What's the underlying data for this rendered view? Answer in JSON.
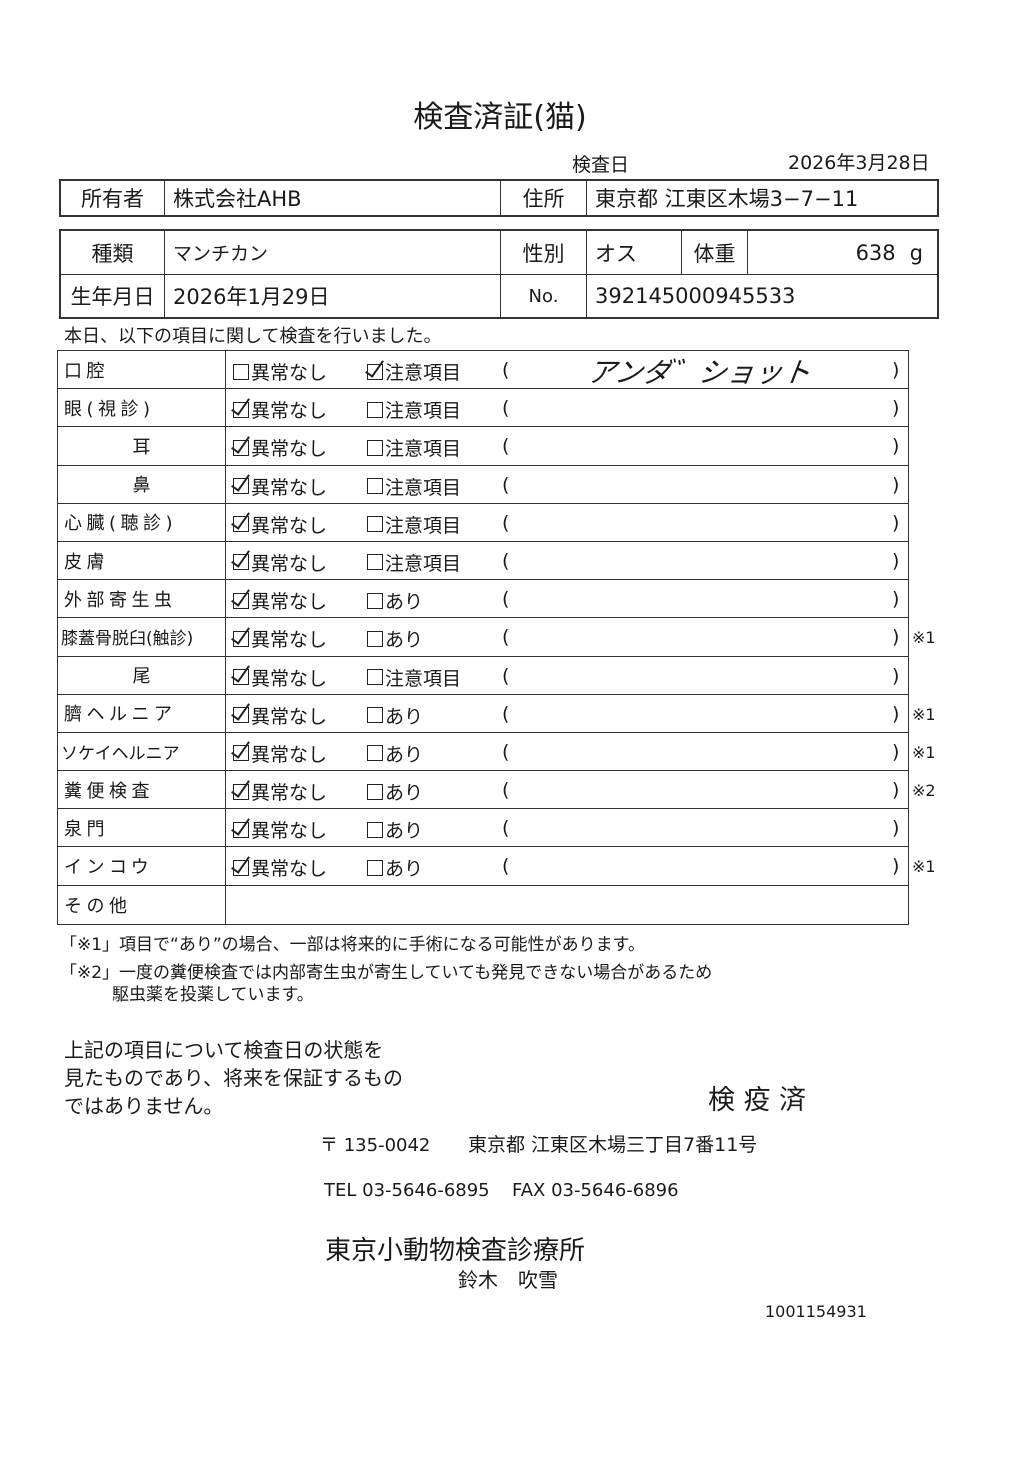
{
  "title": "検査済証(猫)",
  "inspection_date_label": "検査日",
  "inspection_date": "2026年3月28日",
  "owner": {
    "label": "所有者",
    "value": "株式会社AHB",
    "address_label": "住所",
    "address": "東京都 江東区木場3−7−11"
  },
  "pet": {
    "breed_label": "種類",
    "breed": "マンチカン",
    "sex_label": "性別",
    "sex": "オス",
    "weight_label": "体重",
    "weight": "638",
    "weight_unit": "g",
    "birth_label": "生年月日",
    "birth": "2026年1月29日",
    "no_label": "No.",
    "no": "392145000945533"
  },
  "intro": "本日、以下の項目に関して検査を行いました。",
  "open_paren": "(",
  "close_paren": ")",
  "rows": [
    {
      "label": "口腔",
      "normal": "異常なし",
      "alt": "注意項目",
      "checked": "alt",
      "comment": "アンダ゛ショット",
      "note": ""
    },
    {
      "label": "眼(視診)",
      "normal": "異常なし",
      "alt": "注意項目",
      "checked": "normal",
      "comment": "",
      "note": ""
    },
    {
      "label": "耳",
      "normal": "異常なし",
      "alt": "注意項目",
      "checked": "normal",
      "comment": "",
      "note": ""
    },
    {
      "label": "鼻",
      "normal": "異常なし",
      "alt": "注意項目",
      "checked": "normal",
      "comment": "",
      "note": ""
    },
    {
      "label": "心臓(聴診)",
      "normal": "異常なし",
      "alt": "注意項目",
      "checked": "normal",
      "comment": "",
      "note": ""
    },
    {
      "label": "皮膚",
      "normal": "異常なし",
      "alt": "注意項目",
      "checked": "normal",
      "comment": "",
      "note": ""
    },
    {
      "label": "外部寄生虫",
      "normal": "異常なし",
      "alt": "あり",
      "checked": "normal",
      "comment": "",
      "note": ""
    },
    {
      "label": "膝蓋骨脱臼(触診)",
      "normal": "異常なし",
      "alt": "あり",
      "checked": "normal",
      "comment": "",
      "note": "※1"
    },
    {
      "label": "尾",
      "normal": "異常なし",
      "alt": "注意項目",
      "checked": "normal",
      "comment": "",
      "note": ""
    },
    {
      "label": "臍ヘルニア",
      "normal": "異常なし",
      "alt": "あり",
      "checked": "normal",
      "comment": "",
      "note": "※1"
    },
    {
      "label": "ソケイヘルニア",
      "normal": "異常なし",
      "alt": "あり",
      "checked": "normal",
      "comment": "",
      "note": "※1"
    },
    {
      "label": "糞便検査",
      "normal": "異常なし",
      "alt": "あり",
      "checked": "normal",
      "comment": "",
      "note": "※2"
    },
    {
      "label": "泉門",
      "normal": "異常なし",
      "alt": "あり",
      "checked": "normal",
      "comment": "",
      "note": ""
    },
    {
      "label": "インコウ",
      "normal": "異常なし",
      "alt": "あり",
      "checked": "normal",
      "comment": "",
      "note": "※1"
    }
  ],
  "other_label": "その他",
  "footnote1": "「※1」項目で“あり”の場合、一部は将来的に手術になる可能性があります。",
  "footnote2a": "「※2」一度の糞便検査では内部寄生虫が寄生していても発見できない場合があるため",
  "footnote2b": "駆虫薬を投薬しています。",
  "disclaimer": [
    "上記の項目について検査日の状態を",
    "見たものであり、将来を保証するもの",
    "ではありません。"
  ],
  "stamp": "検 疫 済",
  "postal": "〒 135-0042",
  "clinic_address": "東京都 江東区木場三丁目7番11号",
  "tel": "TEL 03-5646-6895",
  "fax": "FAX 03-5646-6896",
  "clinic_name": "東京小動物検査診療所",
  "vet_name": "鈴木　吹雪",
  "doc_id": "1001154931"
}
